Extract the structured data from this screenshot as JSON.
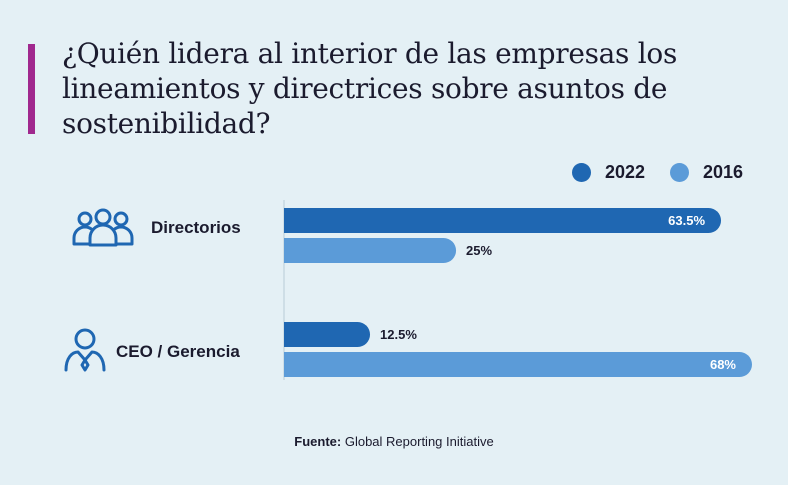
{
  "title": "¿Quién lidera al interior de las empresas los lineamientos y directrices sobre asuntos de sostenibilidad?",
  "colors": {
    "accent_bar": "#a0288e",
    "series_2022": "#1f67b2",
    "series_2016": "#5b9bd8",
    "icon": "#1f67b2"
  },
  "legend": [
    {
      "label": "2022",
      "color": "#1f67b2"
    },
    {
      "label": "2016",
      "color": "#5b9bd8"
    }
  ],
  "categories": [
    {
      "label": "Directorios",
      "icon": "group-people-icon"
    },
    {
      "label": "CEO / Gerencia",
      "icon": "executive-person-icon"
    }
  ],
  "chart_data": {
    "type": "bar",
    "orientation": "horizontal",
    "title": "¿Quién lidera al interior de las empresas los lineamientos y directrices sobre asuntos de sostenibilidad?",
    "categories": [
      "Directorios",
      "CEO / Gerencia"
    ],
    "series": [
      {
        "name": "2022",
        "values": [
          63.5,
          12.5
        ],
        "labels": [
          "63.5%",
          "12.5%"
        ],
        "color": "#1f67b2"
      },
      {
        "name": "2016",
        "values": [
          25,
          68
        ],
        "labels": [
          "25%",
          "68%"
        ],
        "color": "#5b9bd8"
      }
    ],
    "xlim": [
      0,
      68
    ],
    "grid": false,
    "legend_position": "top-right"
  },
  "source": {
    "prefix": "Fuente:",
    "text": " Global Reporting Initiative"
  }
}
